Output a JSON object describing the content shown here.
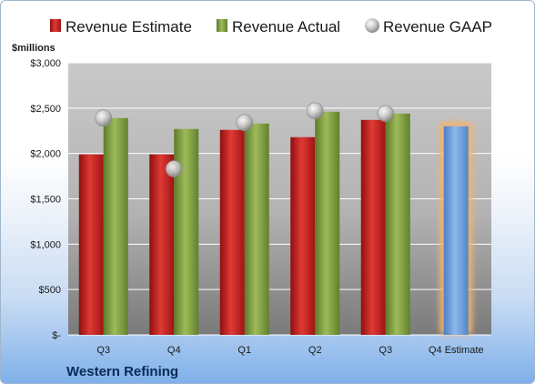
{
  "colors": {
    "estimate": "#c8201e",
    "actual": "#7f9c3e",
    "gaap": "#bfbfbf",
    "q4_estimate": "#6f9fd8",
    "q4_estimate_glow": "#f6b26b"
  },
  "chart_data": {
    "type": "bar",
    "ylabel": "$millions",
    "ylim": [
      0,
      3000
    ],
    "ytick_values": [
      0,
      500,
      1000,
      1500,
      2000,
      2500,
      3000
    ],
    "ytick_labels": [
      "$-",
      "$500",
      "$1,000",
      "$1,500",
      "$2,000",
      "$2,500",
      "$3,000"
    ],
    "categories": [
      "Q3",
      "Q4",
      "Q1",
      "Q2",
      "Q3",
      "Q4 Estimate"
    ],
    "legend_position": "top",
    "grid": true,
    "series": [
      {
        "name": "Revenue Estimate",
        "values": [
          1990,
          1990,
          2260,
          2180,
          2370,
          null
        ]
      },
      {
        "name": "Revenue Actual",
        "values": [
          2390,
          2270,
          2330,
          2460,
          2440,
          2300
        ]
      },
      {
        "name": "Revenue GAAP",
        "values": [
          2390,
          1830,
          2340,
          2470,
          2440,
          null
        ]
      }
    ]
  },
  "company_name": "Western Refining"
}
